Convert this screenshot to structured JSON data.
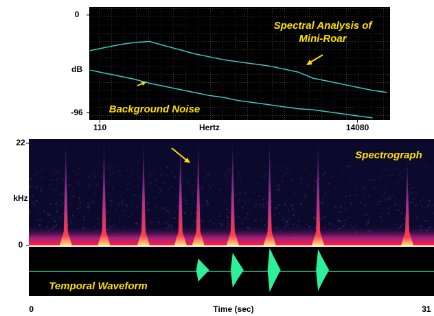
{
  "chart_data": [
    {
      "type": "line",
      "x_label": "Hertz",
      "y_label": "dB",
      "log_x": true,
      "xlim": [
        90,
        26000
      ],
      "xticks": [
        110,
        14080
      ],
      "ylim": [
        -103,
        8
      ],
      "yticks": [
        0,
        -96
      ],
      "x": [
        91,
        120,
        160,
        210,
        280,
        370,
        490,
        650,
        860,
        1140,
        1500,
        2000,
        2650,
        3500,
        4600,
        6100,
        8100,
        10700,
        14100,
        18700,
        24700
      ],
      "series": [
        {
          "name": "Spectral Analysis of Mini-Roar",
          "color": "#3ec8c8",
          "values": [
            -35,
            -32,
            -29,
            -27,
            -26,
            -30,
            -34,
            -38,
            -41,
            -44,
            -46,
            -48,
            -50,
            -53,
            -56,
            -62,
            -65,
            -68,
            -71,
            -74,
            -76
          ]
        },
        {
          "name": "Background Noise",
          "color": "#3ec8c8",
          "values": [
            -54,
            -57,
            -60,
            -63,
            -67,
            -70,
            -73,
            -76,
            -79,
            -81,
            -84,
            -86,
            -88,
            -90,
            -92,
            -93,
            -95,
            -97,
            -99,
            -101,
            null
          ]
        }
      ]
    },
    {
      "type": "spectrogram",
      "title": "Spectrograph",
      "y_label": "kHz",
      "ylim": [
        0,
        22
      ],
      "yticks": [
        0,
        22
      ],
      "xlim": [
        -0.2,
        31.6
      ],
      "x": [
        2.7,
        5.7,
        8.8,
        11.7,
        13.1,
        15.8,
        18.7,
        22.5,
        29.5
      ],
      "values": [
        22,
        22,
        22,
        22,
        22,
        22,
        22,
        22,
        18
      ]
    },
    {
      "type": "waveform",
      "title": "Temporal Waveform",
      "x_label": "Time (sec)",
      "xlim": [
        -0.2,
        31.6
      ],
      "xticks": [
        0,
        31
      ],
      "ylim": [
        -1,
        1
      ],
      "x": [
        13.1,
        15.8,
        18.7,
        22.5
      ],
      "values": [
        0.5,
        0.75,
        0.95,
        0.9
      ]
    }
  ]
}
